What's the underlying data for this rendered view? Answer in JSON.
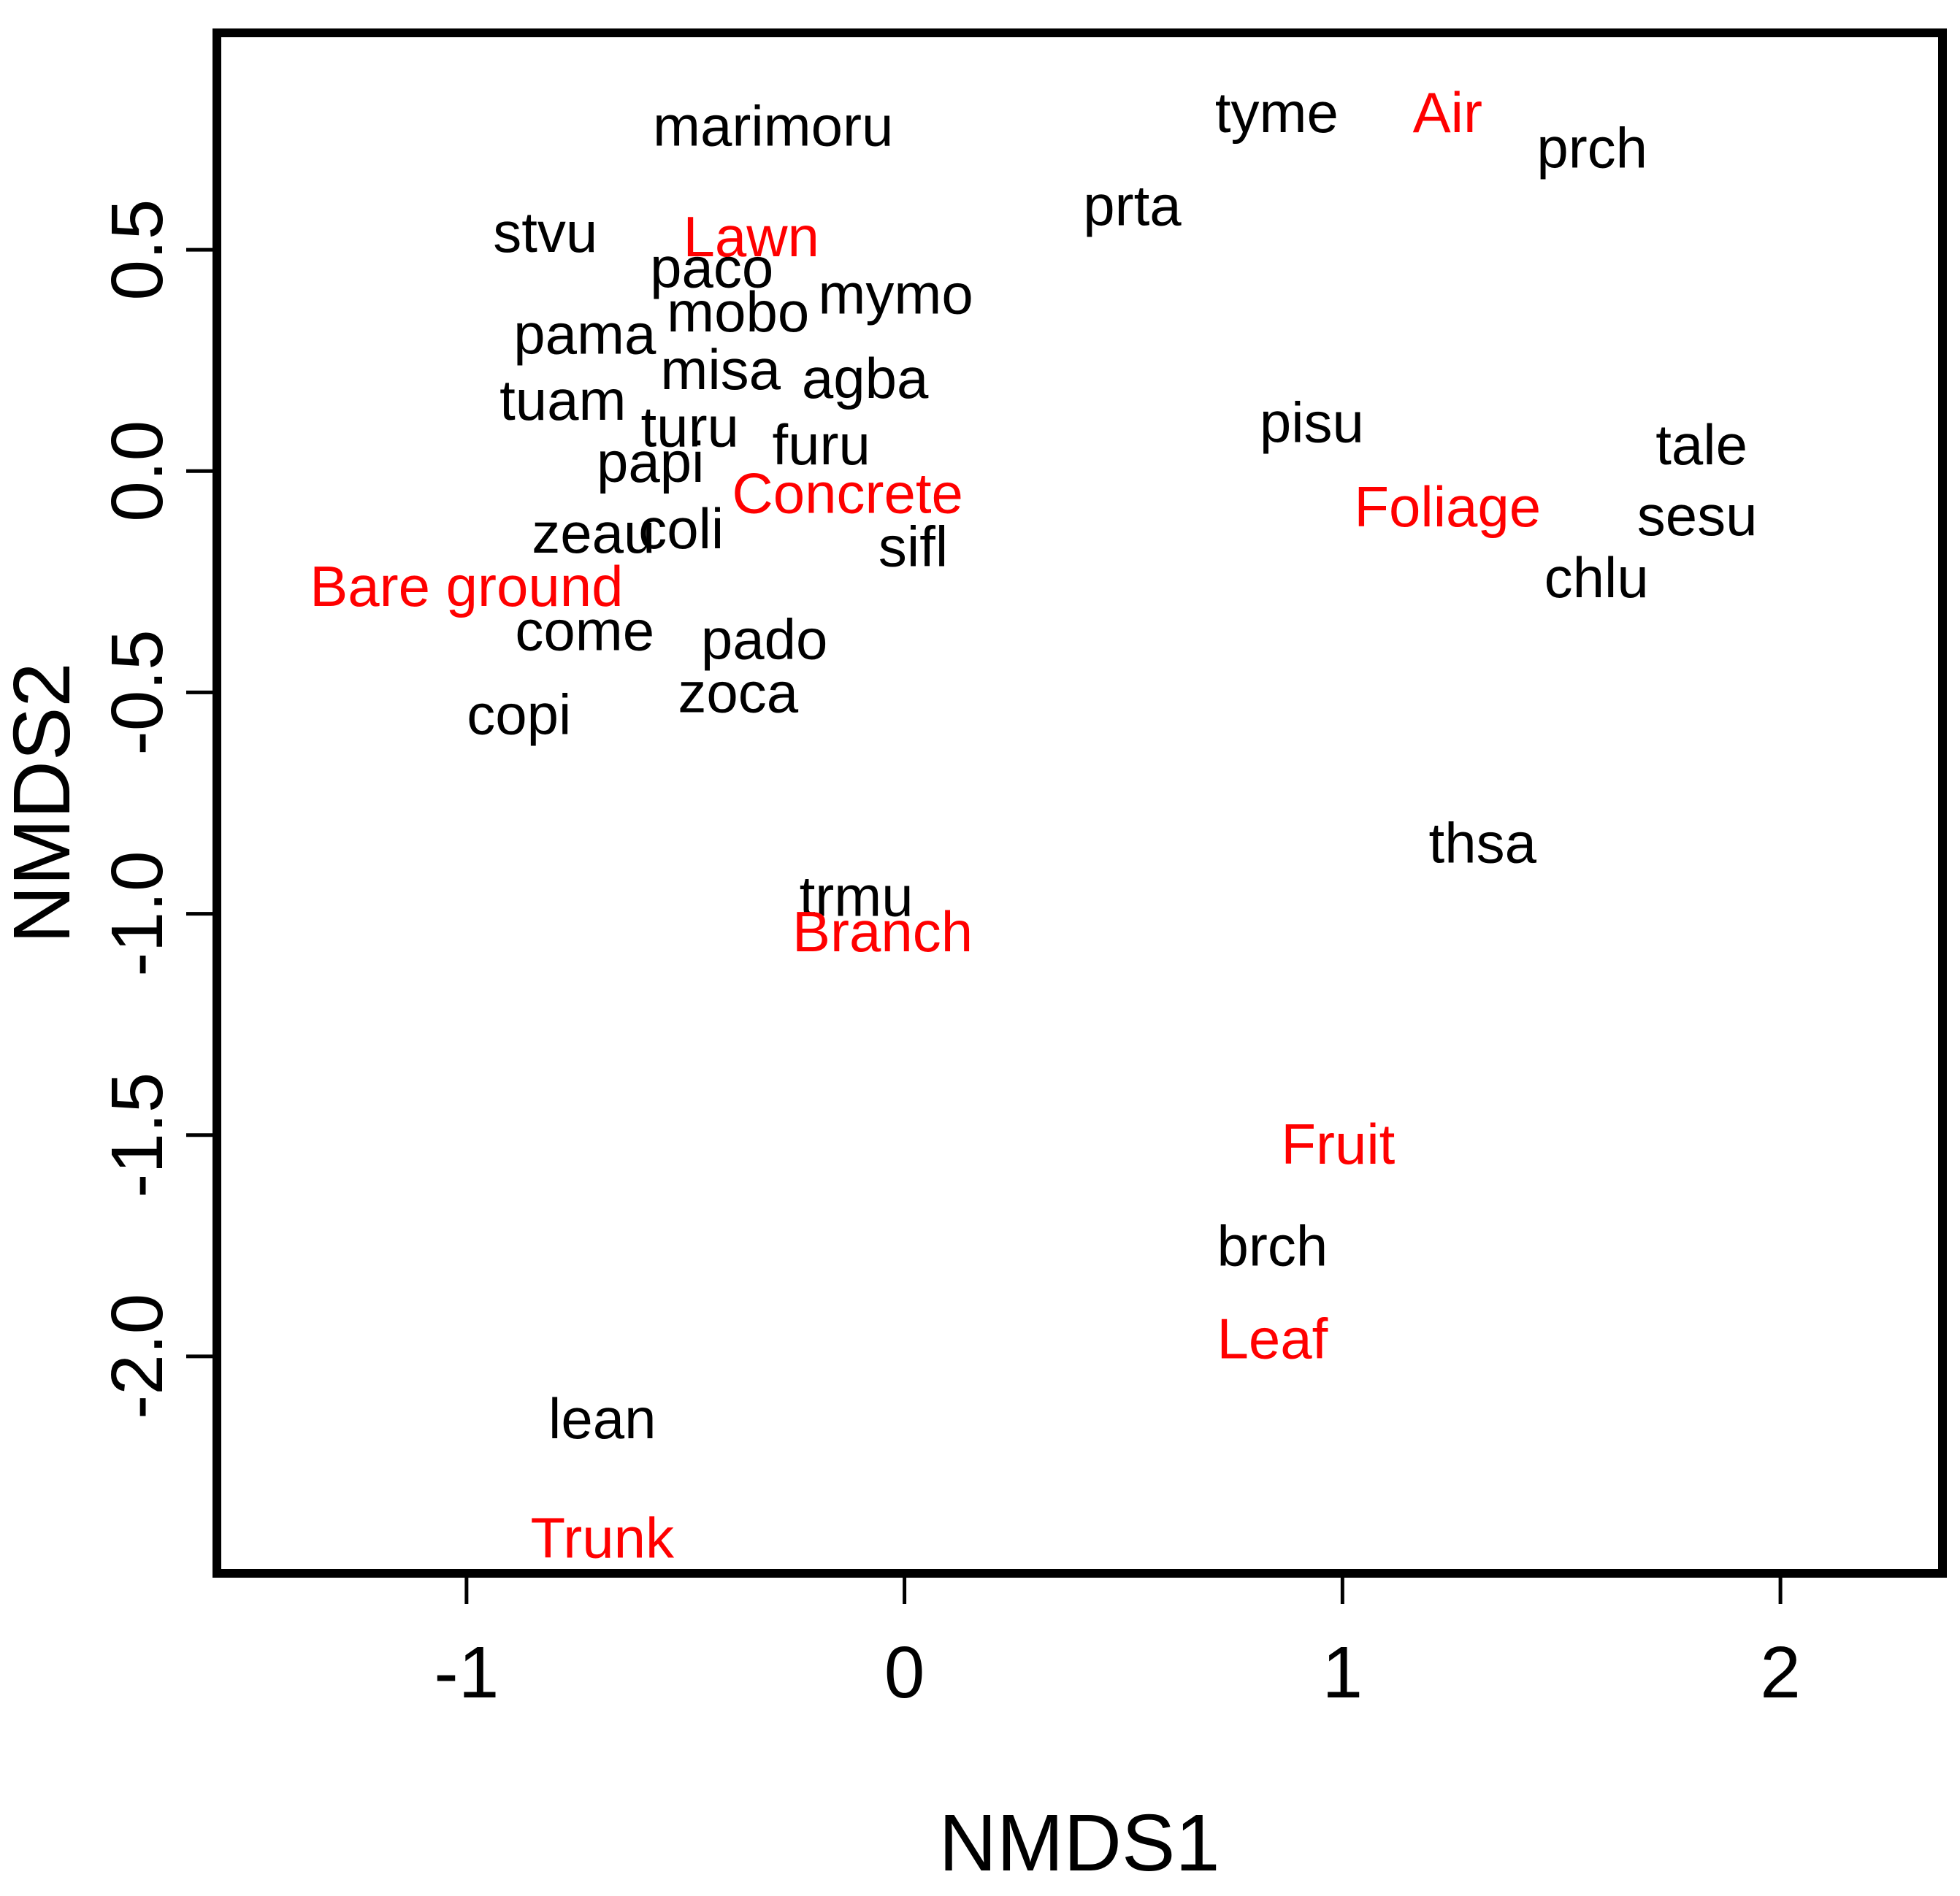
{
  "chart_data": {
    "type": "scatter",
    "title": "",
    "xlabel": "NMDS1",
    "ylabel": "NMDS2",
    "xlim": [
      -1.57,
      2.37
    ],
    "ylim": [
      -2.49,
      0.99
    ],
    "xticks": [
      -1,
      0,
      1,
      2
    ],
    "yticks": [
      0.5,
      0.0,
      -0.5,
      -1.0,
      -1.5,
      -2.0
    ],
    "xtick_labels": [
      "-1",
      "0",
      "1",
      "2"
    ],
    "ytick_labels": [
      "0.5",
      "0.0",
      "-0.5",
      "-1.0",
      "-1.5",
      "-2.0"
    ],
    "grid": false,
    "colors": {
      "species": "#000000",
      "habitat": "#ff0000"
    },
    "series": [
      {
        "group": "species",
        "points": [
          {
            "label": "marimoru",
            "x": -0.3,
            "y": 0.78
          },
          {
            "label": "tyme",
            "x": 0.85,
            "y": 0.81
          },
          {
            "label": "prch",
            "x": 1.57,
            "y": 0.73
          },
          {
            "label": "prta",
            "x": 0.52,
            "y": 0.6
          },
          {
            "label": "stvu",
            "x": -0.82,
            "y": 0.54
          },
          {
            "label": "paco",
            "x": -0.44,
            "y": 0.46
          },
          {
            "label": "mobo",
            "x": -0.38,
            "y": 0.36
          },
          {
            "label": "mymo",
            "x": -0.02,
            "y": 0.4
          },
          {
            "label": "pama",
            "x": -0.73,
            "y": 0.31
          },
          {
            "label": "misa",
            "x": -0.42,
            "y": 0.23
          },
          {
            "label": "agba",
            "x": -0.09,
            "y": 0.21
          },
          {
            "label": "tuam",
            "x": -0.78,
            "y": 0.16
          },
          {
            "label": "turu",
            "x": -0.49,
            "y": 0.1
          },
          {
            "label": "furu",
            "x": -0.19,
            "y": 0.06
          },
          {
            "label": "pisu",
            "x": 0.93,
            "y": 0.11
          },
          {
            "label": "tale",
            "x": 1.82,
            "y": 0.06
          },
          {
            "label": "papi",
            "x": -0.58,
            "y": 0.02
          },
          {
            "label": "sesu",
            "x": 1.81,
            "y": -0.1
          },
          {
            "label": "zeau",
            "x": -0.71,
            "y": -0.14
          },
          {
            "label": "coli",
            "x": -0.51,
            "y": -0.13
          },
          {
            "label": "sifl",
            "x": 0.02,
            "y": -0.17
          },
          {
            "label": "chlu",
            "x": 1.58,
            "y": -0.24
          },
          {
            "label": "come",
            "x": -0.73,
            "y": -0.36
          },
          {
            "label": "pado",
            "x": -0.32,
            "y": -0.38
          },
          {
            "label": "zoca",
            "x": -0.38,
            "y": -0.5
          },
          {
            "label": "copi",
            "x": -0.88,
            "y": -0.55
          },
          {
            "label": "thsa",
            "x": 1.32,
            "y": -0.84
          },
          {
            "label": "trmu",
            "x": -0.11,
            "y": -0.96
          },
          {
            "label": "brch",
            "x": 0.84,
            "y": -1.75
          },
          {
            "label": "lean",
            "x": -0.69,
            "y": -2.14
          }
        ]
      },
      {
        "group": "habitat",
        "points": [
          {
            "label": "Air",
            "x": 1.24,
            "y": 0.81
          },
          {
            "label": "Lawn",
            "x": -0.35,
            "y": 0.53
          },
          {
            "label": "Concrete",
            "x": -0.13,
            "y": -0.05
          },
          {
            "label": "Foliage",
            "x": 1.24,
            "y": -0.08
          },
          {
            "label": "Bare ground",
            "x": -1.0,
            "y": -0.26
          },
          {
            "label": "Branch",
            "x": -0.05,
            "y": -1.04
          },
          {
            "label": "Fruit",
            "x": 0.99,
            "y": -1.52
          },
          {
            "label": "Leaf",
            "x": 0.84,
            "y": -1.96
          },
          {
            "label": "Trunk",
            "x": -0.69,
            "y": -2.41
          }
        ]
      }
    ]
  }
}
